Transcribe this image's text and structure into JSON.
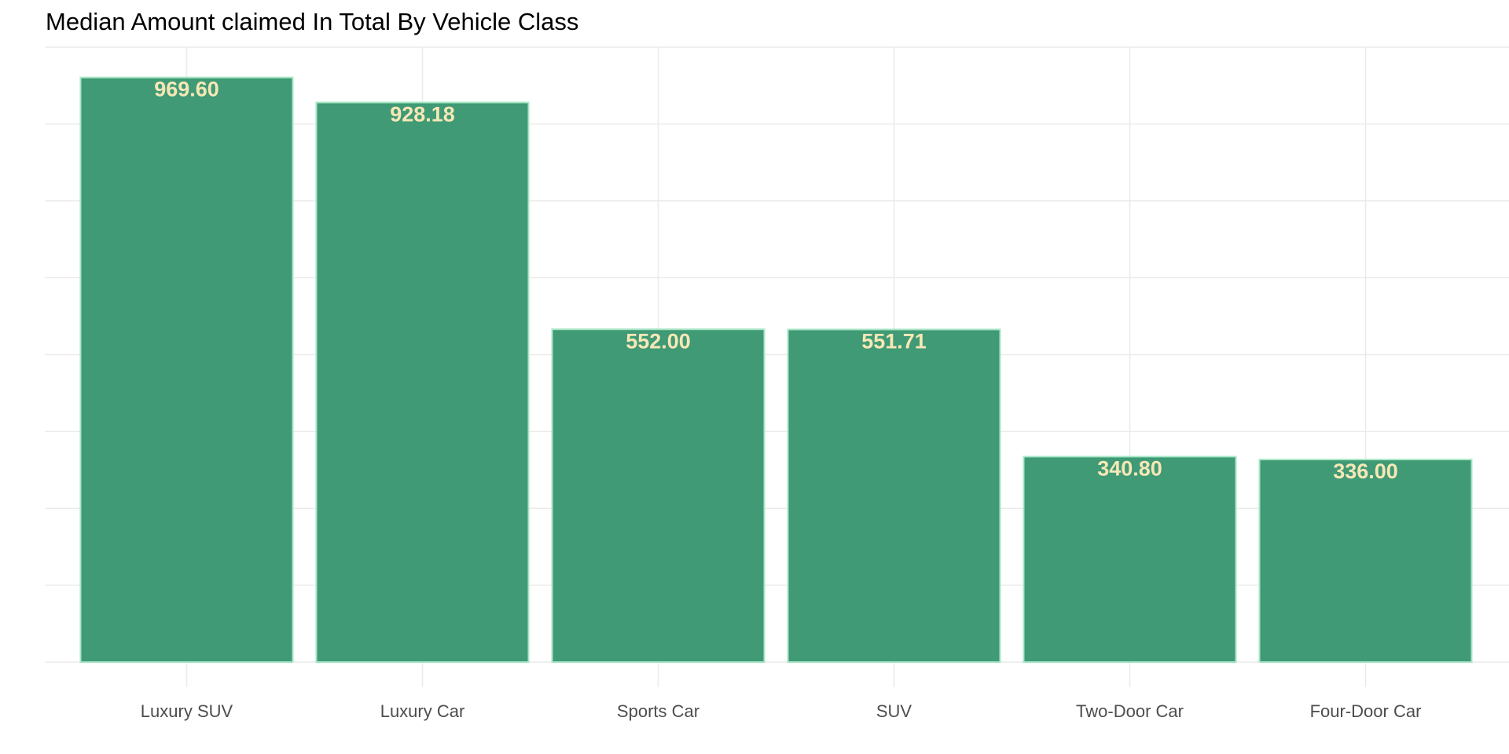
{
  "chart_data": {
    "type": "bar",
    "title": "Median Amount claimed In Total By Vehicle Class",
    "xlabel": "",
    "ylabel": "",
    "categories": [
      "Luxury SUV",
      "Luxury Car",
      "Sports Car",
      "SUV",
      "Two-Door Car",
      "Four-Door Car"
    ],
    "values": [
      969.6,
      928.18,
      552.0,
      551.71,
      340.8,
      336.0
    ],
    "data_labels": [
      "969.60",
      "928.18",
      "552.00",
      "551.71",
      "340.80",
      "336.00"
    ],
    "ylim": [
      0,
      1020
    ],
    "y_ticks_shown": false,
    "grid": true,
    "legend": "none",
    "colors": {
      "bar_fill": "#3f9a75",
      "bar_outline": "#a8e6c6",
      "label_text": "#f7e7b6",
      "grid": "#ebebeb"
    }
  }
}
